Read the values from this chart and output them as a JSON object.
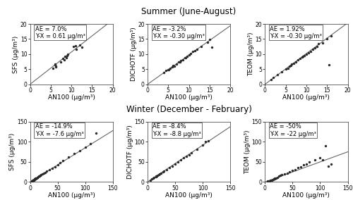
{
  "title_summer": "Summer (June-August)",
  "title_winter": "Winter (December - February)",
  "summer_plots": [
    {
      "ylabel": "SFS (μg/m³)",
      "xlabel": "AN100 (μg/m³)",
      "ae": "AE = 7.0%",
      "yx": "Y-X = 0.61 μg/m³",
      "xlim": [
        0,
        20
      ],
      "ylim": [
        0,
        20
      ],
      "xticks": [
        0,
        5,
        10,
        15,
        20
      ],
      "yticks": [
        0,
        5,
        10,
        15,
        20
      ],
      "x": [
        5.5,
        6.0,
        6.1,
        6.2,
        6.3,
        7.5,
        8.0,
        8.2,
        8.5,
        8.8,
        9.0,
        9.2,
        10.5,
        11.0,
        11.2,
        12.0,
        12.5
      ],
      "y": [
        5.2,
        6.5,
        6.8,
        5.8,
        6.0,
        7.5,
        8.5,
        8.0,
        9.2,
        8.8,
        9.5,
        10.0,
        12.5,
        12.8,
        11.5,
        13.0,
        12.2
      ],
      "line_x": [
        0,
        20
      ],
      "line_y": [
        0,
        21.4
      ]
    },
    {
      "ylabel": "DICHOTF (μg/m³)",
      "xlabel": "AN100 (μg/m³)",
      "ae": "AE = -3.2%",
      "yx": "Y-X = -0.30 μg/m³",
      "xlim": [
        0,
        20
      ],
      "ylim": [
        0,
        20
      ],
      "xticks": [
        0,
        5,
        10,
        15,
        20
      ],
      "yticks": [
        0,
        5,
        10,
        15,
        20
      ],
      "x": [
        4.0,
        4.5,
        5.0,
        5.2,
        5.5,
        6.0,
        6.2,
        6.5,
        7.0,
        7.5,
        7.8,
        8.0,
        8.5,
        9.0,
        9.2,
        9.5,
        10.0,
        10.5,
        11.0,
        11.5,
        12.0,
        13.0,
        14.5,
        15.0,
        15.5
      ],
      "y": [
        3.8,
        4.5,
        4.8,
        4.9,
        5.3,
        5.8,
        6.2,
        6.0,
        6.8,
        7.3,
        7.5,
        7.8,
        8.2,
        8.8,
        8.9,
        9.2,
        9.8,
        10.2,
        10.8,
        11.2,
        11.5,
        12.5,
        14.0,
        14.8,
        12.2
      ],
      "line_x": [
        0,
        20
      ],
      "line_y": [
        0,
        19.4
      ]
    },
    {
      "ylabel": "TEOM (μg/m³)",
      "xlabel": "AN100 (μg/m³)",
      "ae": "AE = 1.92%",
      "yx": "Y-X = -0.30 μg/m³",
      "xlim": [
        0,
        20
      ],
      "ylim": [
        0,
        20
      ],
      "xticks": [
        0,
        5,
        10,
        15,
        20
      ],
      "yticks": [
        0,
        5,
        10,
        15,
        20
      ],
      "x": [
        1.5,
        2.0,
        3.0,
        4.0,
        5.0,
        5.5,
        6.0,
        6.2,
        6.5,
        7.0,
        7.5,
        8.0,
        8.5,
        9.0,
        9.2,
        9.5,
        10.0,
        10.5,
        11.0,
        11.5,
        12.0,
        12.5,
        13.0,
        14.0,
        15.0,
        15.5,
        16.0
      ],
      "y": [
        1.5,
        2.2,
        3.2,
        4.2,
        5.0,
        5.2,
        6.0,
        6.2,
        6.8,
        7.0,
        7.5,
        8.0,
        8.5,
        9.0,
        9.2,
        9.5,
        10.0,
        10.5,
        11.0,
        11.5,
        12.0,
        12.5,
        13.5,
        13.8,
        15.0,
        6.5,
        16.0
      ],
      "line_x": [
        0,
        20
      ],
      "line_y": [
        0,
        20.38
      ]
    }
  ],
  "winter_plots": [
    {
      "ylabel": "SFS (μg/m³)",
      "xlabel": "AN100 (μg/m³)",
      "ae": "AE = -14.9%",
      "yx": "Y-X = -7.6 μg/m³",
      "xlim": [
        0,
        150
      ],
      "ylim": [
        0,
        150
      ],
      "xticks": [
        0,
        50,
        100,
        150
      ],
      "yticks": [
        0,
        50,
        100,
        150
      ],
      "x": [
        2,
        3,
        4,
        5,
        5,
        6,
        6,
        7,
        7,
        8,
        8,
        9,
        9,
        10,
        10,
        11,
        12,
        13,
        14,
        15,
        16,
        17,
        18,
        19,
        20,
        22,
        25,
        28,
        30,
        35,
        40,
        45,
        50,
        55,
        60,
        70,
        80,
        90,
        100,
        110,
        120
      ],
      "y": [
        1,
        2,
        2,
        3,
        4,
        4,
        5,
        5,
        6,
        6,
        7,
        7,
        8,
        8,
        9,
        9,
        10,
        11,
        12,
        13,
        14,
        15,
        16,
        17,
        18,
        20,
        22,
        24,
        27,
        30,
        34,
        38,
        43,
        48,
        53,
        62,
        70,
        78,
        87,
        95,
        122
      ],
      "line_x": [
        0,
        150
      ],
      "line_y": [
        0,
        127.65
      ]
    },
    {
      "ylabel": "DICHOTF (μg/m³)",
      "xlabel": "AN100 (μg/m³)",
      "ae": "AE = -8.4%",
      "yx": "Y-X = -8.8 μg/m³",
      "xlim": [
        0,
        150
      ],
      "ylim": [
        0,
        150
      ],
      "xticks": [
        0,
        50,
        100,
        150
      ],
      "yticks": [
        0,
        50,
        100,
        150
      ],
      "x": [
        5,
        8,
        10,
        12,
        15,
        16,
        17,
        18,
        20,
        22,
        25,
        28,
        30,
        35,
        40,
        45,
        50,
        55,
        60,
        65,
        70,
        75,
        80,
        90,
        100,
        105,
        110
      ],
      "y": [
        4,
        7,
        9,
        11,
        13,
        14,
        15,
        16,
        18,
        20,
        22,
        25,
        27,
        30,
        35,
        40,
        45,
        50,
        55,
        60,
        63,
        68,
        72,
        82,
        92,
        100,
        102
      ],
      "line_x": [
        0,
        150
      ],
      "line_y": [
        0,
        137.4
      ]
    },
    {
      "ylabel": "TEOM (μg/m³)",
      "xlabel": "AN100 (μg/m³)",
      "ae": "AE = -50%",
      "yx": "Y-X = -22 μg/m³",
      "xlim": [
        0,
        150
      ],
      "ylim": [
        0,
        150
      ],
      "xticks": [
        0,
        50,
        100,
        150
      ],
      "yticks": [
        0,
        50,
        100,
        150
      ],
      "x": [
        5,
        8,
        10,
        12,
        15,
        16,
        17,
        18,
        20,
        22,
        25,
        28,
        30,
        35,
        40,
        45,
        50,
        55,
        60,
        65,
        70,
        75,
        80,
        90,
        100,
        105,
        110,
        115,
        120
      ],
      "y": [
        2,
        3,
        4,
        5,
        6,
        7,
        8,
        9,
        10,
        12,
        14,
        16,
        18,
        20,
        22,
        25,
        28,
        30,
        35,
        38,
        42,
        45,
        50,
        55,
        60,
        55,
        90,
        40,
        45
      ],
      "line_x": [
        0,
        150
      ],
      "line_y": [
        0,
        75.0
      ]
    }
  ],
  "dot_color": "#2a2a2a",
  "dot_size": 6,
  "line_color": "#666666",
  "annotation_fontsize": 6.0,
  "axis_label_fontsize": 6.5,
  "tick_fontsize": 5.5,
  "title_fontsize": 8.5,
  "background_color": "#ffffff"
}
